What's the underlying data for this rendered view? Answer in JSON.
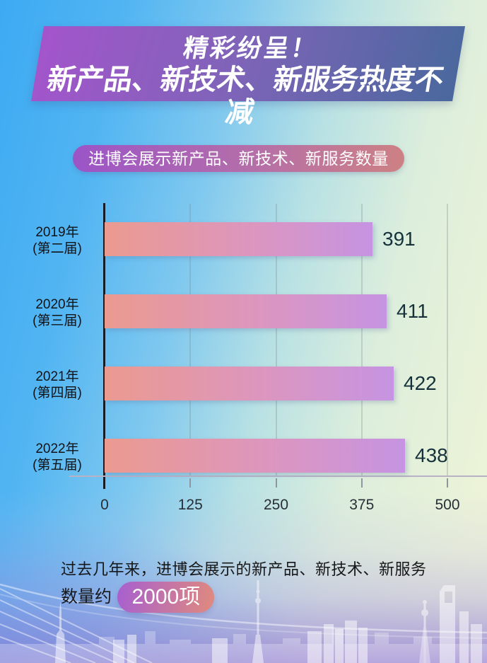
{
  "title": {
    "line1": "精彩纷呈！",
    "line2": "新产品、新技术、新服务热度不减"
  },
  "badge": {
    "label": "进博会展示新产品、新技术、新服务数量"
  },
  "chart_data": {
    "type": "bar",
    "orientation": "horizontal",
    "title": "进博会展示新产品、新技术、新服务数量",
    "categories": [
      "2019年(第二届)",
      "2020年(第三届)",
      "2021年(第四届)",
      "2022年(第五届)"
    ],
    "rows": [
      {
        "year": "2019年",
        "session": "(第二届)"
      },
      {
        "year": "2020年",
        "session": "(第三届)"
      },
      {
        "year": "2021年",
        "session": "(第四届)"
      },
      {
        "year": "2022年",
        "session": "(第五届)"
      }
    ],
    "values": [
      391,
      411,
      422,
      438
    ],
    "x_ticks": [
      "0",
      "125",
      "250",
      "375",
      "500"
    ],
    "xlim": [
      0,
      500
    ],
    "grid": true,
    "legend": "none",
    "bar_gradient": [
      "#eb9a8f",
      "#c694e2"
    ]
  },
  "footer": {
    "line1": "过去几年来，进博会展示的新产品、新技术、新服务",
    "line2_prefix": "数量约",
    "highlight": "2000项"
  },
  "colors": {
    "banner_left": "#a355cb",
    "banner_right": "#4a689e",
    "badge_left": "#9b54c7",
    "badge_right": "#cd8184",
    "bar_left": "#eb9a8f",
    "bar_right": "#c694e2",
    "pill_left": "#a75fd0",
    "pill_right": "#e08a7d",
    "bg_top_left": "#41adf4",
    "bg_right": "#eaf3d9",
    "bg_bottom": "#9c89d2",
    "value_text": "#15323b"
  }
}
